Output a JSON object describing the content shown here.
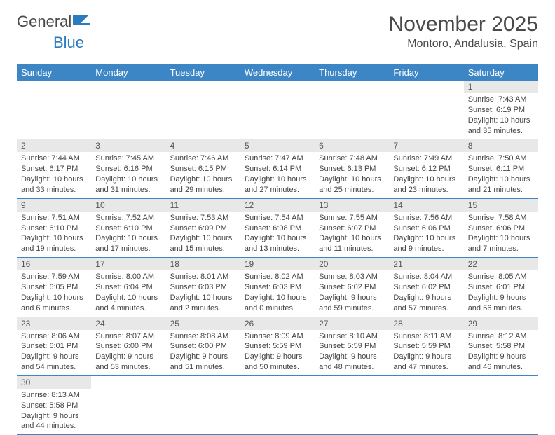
{
  "logo": {
    "text1": "General",
    "text2": "Blue"
  },
  "title": "November 2025",
  "location": "Montoro, Andalusia, Spain",
  "day_headers": [
    "Sunday",
    "Monday",
    "Tuesday",
    "Wednesday",
    "Thursday",
    "Friday",
    "Saturday"
  ],
  "colors": {
    "header_bg": "#3d86c6",
    "header_fg": "#ffffff",
    "daynum_bg": "#e8e8e8",
    "border": "#3d86c6",
    "text": "#444444"
  },
  "weeks": [
    [
      null,
      null,
      null,
      null,
      null,
      null,
      {
        "n": "1",
        "sunrise": "Sunrise: 7:43 AM",
        "sunset": "Sunset: 6:19 PM",
        "daylight": "Daylight: 10 hours and 35 minutes."
      }
    ],
    [
      {
        "n": "2",
        "sunrise": "Sunrise: 7:44 AM",
        "sunset": "Sunset: 6:17 PM",
        "daylight": "Daylight: 10 hours and 33 minutes."
      },
      {
        "n": "3",
        "sunrise": "Sunrise: 7:45 AM",
        "sunset": "Sunset: 6:16 PM",
        "daylight": "Daylight: 10 hours and 31 minutes."
      },
      {
        "n": "4",
        "sunrise": "Sunrise: 7:46 AM",
        "sunset": "Sunset: 6:15 PM",
        "daylight": "Daylight: 10 hours and 29 minutes."
      },
      {
        "n": "5",
        "sunrise": "Sunrise: 7:47 AM",
        "sunset": "Sunset: 6:14 PM",
        "daylight": "Daylight: 10 hours and 27 minutes."
      },
      {
        "n": "6",
        "sunrise": "Sunrise: 7:48 AM",
        "sunset": "Sunset: 6:13 PM",
        "daylight": "Daylight: 10 hours and 25 minutes."
      },
      {
        "n": "7",
        "sunrise": "Sunrise: 7:49 AM",
        "sunset": "Sunset: 6:12 PM",
        "daylight": "Daylight: 10 hours and 23 minutes."
      },
      {
        "n": "8",
        "sunrise": "Sunrise: 7:50 AM",
        "sunset": "Sunset: 6:11 PM",
        "daylight": "Daylight: 10 hours and 21 minutes."
      }
    ],
    [
      {
        "n": "9",
        "sunrise": "Sunrise: 7:51 AM",
        "sunset": "Sunset: 6:10 PM",
        "daylight": "Daylight: 10 hours and 19 minutes."
      },
      {
        "n": "10",
        "sunrise": "Sunrise: 7:52 AM",
        "sunset": "Sunset: 6:10 PM",
        "daylight": "Daylight: 10 hours and 17 minutes."
      },
      {
        "n": "11",
        "sunrise": "Sunrise: 7:53 AM",
        "sunset": "Sunset: 6:09 PM",
        "daylight": "Daylight: 10 hours and 15 minutes."
      },
      {
        "n": "12",
        "sunrise": "Sunrise: 7:54 AM",
        "sunset": "Sunset: 6:08 PM",
        "daylight": "Daylight: 10 hours and 13 minutes."
      },
      {
        "n": "13",
        "sunrise": "Sunrise: 7:55 AM",
        "sunset": "Sunset: 6:07 PM",
        "daylight": "Daylight: 10 hours and 11 minutes."
      },
      {
        "n": "14",
        "sunrise": "Sunrise: 7:56 AM",
        "sunset": "Sunset: 6:06 PM",
        "daylight": "Daylight: 10 hours and 9 minutes."
      },
      {
        "n": "15",
        "sunrise": "Sunrise: 7:58 AM",
        "sunset": "Sunset: 6:06 PM",
        "daylight": "Daylight: 10 hours and 7 minutes."
      }
    ],
    [
      {
        "n": "16",
        "sunrise": "Sunrise: 7:59 AM",
        "sunset": "Sunset: 6:05 PM",
        "daylight": "Daylight: 10 hours and 6 minutes."
      },
      {
        "n": "17",
        "sunrise": "Sunrise: 8:00 AM",
        "sunset": "Sunset: 6:04 PM",
        "daylight": "Daylight: 10 hours and 4 minutes."
      },
      {
        "n": "18",
        "sunrise": "Sunrise: 8:01 AM",
        "sunset": "Sunset: 6:03 PM",
        "daylight": "Daylight: 10 hours and 2 minutes."
      },
      {
        "n": "19",
        "sunrise": "Sunrise: 8:02 AM",
        "sunset": "Sunset: 6:03 PM",
        "daylight": "Daylight: 10 hours and 0 minutes."
      },
      {
        "n": "20",
        "sunrise": "Sunrise: 8:03 AM",
        "sunset": "Sunset: 6:02 PM",
        "daylight": "Daylight: 9 hours and 59 minutes."
      },
      {
        "n": "21",
        "sunrise": "Sunrise: 8:04 AM",
        "sunset": "Sunset: 6:02 PM",
        "daylight": "Daylight: 9 hours and 57 minutes."
      },
      {
        "n": "22",
        "sunrise": "Sunrise: 8:05 AM",
        "sunset": "Sunset: 6:01 PM",
        "daylight": "Daylight: 9 hours and 56 minutes."
      }
    ],
    [
      {
        "n": "23",
        "sunrise": "Sunrise: 8:06 AM",
        "sunset": "Sunset: 6:01 PM",
        "daylight": "Daylight: 9 hours and 54 minutes."
      },
      {
        "n": "24",
        "sunrise": "Sunrise: 8:07 AM",
        "sunset": "Sunset: 6:00 PM",
        "daylight": "Daylight: 9 hours and 53 minutes."
      },
      {
        "n": "25",
        "sunrise": "Sunrise: 8:08 AM",
        "sunset": "Sunset: 6:00 PM",
        "daylight": "Daylight: 9 hours and 51 minutes."
      },
      {
        "n": "26",
        "sunrise": "Sunrise: 8:09 AM",
        "sunset": "Sunset: 5:59 PM",
        "daylight": "Daylight: 9 hours and 50 minutes."
      },
      {
        "n": "27",
        "sunrise": "Sunrise: 8:10 AM",
        "sunset": "Sunset: 5:59 PM",
        "daylight": "Daylight: 9 hours and 48 minutes."
      },
      {
        "n": "28",
        "sunrise": "Sunrise: 8:11 AM",
        "sunset": "Sunset: 5:59 PM",
        "daylight": "Daylight: 9 hours and 47 minutes."
      },
      {
        "n": "29",
        "sunrise": "Sunrise: 8:12 AM",
        "sunset": "Sunset: 5:58 PM",
        "daylight": "Daylight: 9 hours and 46 minutes."
      }
    ],
    [
      {
        "n": "30",
        "sunrise": "Sunrise: 8:13 AM",
        "sunset": "Sunset: 5:58 PM",
        "daylight": "Daylight: 9 hours and 44 minutes."
      },
      null,
      null,
      null,
      null,
      null,
      null
    ]
  ]
}
